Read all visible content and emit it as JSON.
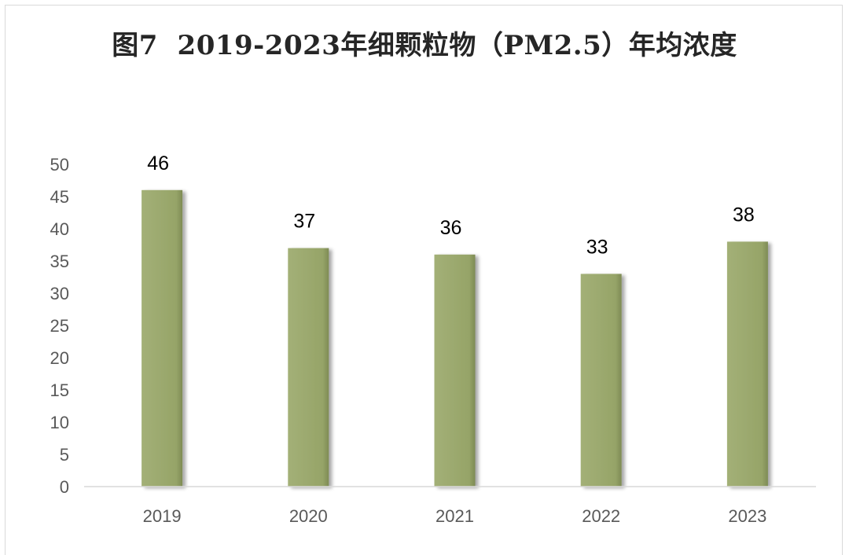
{
  "chart_data": {
    "type": "bar",
    "title": "图7  2019-2023年细颗粒物（PM2.5）年均浓度",
    "categories": [
      "2019",
      "2020",
      "2021",
      "2022",
      "2023"
    ],
    "values": [
      46,
      37,
      36,
      33,
      38
    ],
    "data_labels": [
      "46",
      "37",
      "36",
      "33",
      "38"
    ],
    "ylim": [
      0,
      50
    ],
    "yticks": [
      "0",
      "5",
      "10",
      "15",
      "20",
      "25",
      "30",
      "35",
      "40",
      "45",
      "50"
    ],
    "xlabel": "",
    "ylabel": "",
    "grid": false,
    "legend": "none",
    "bar_color": "#9aa86d",
    "bar_shadow_color": "#7e8a55",
    "axis_color": "#d9d9d9",
    "tick_label_color": "#595959",
    "data_label_color": "#000000"
  }
}
